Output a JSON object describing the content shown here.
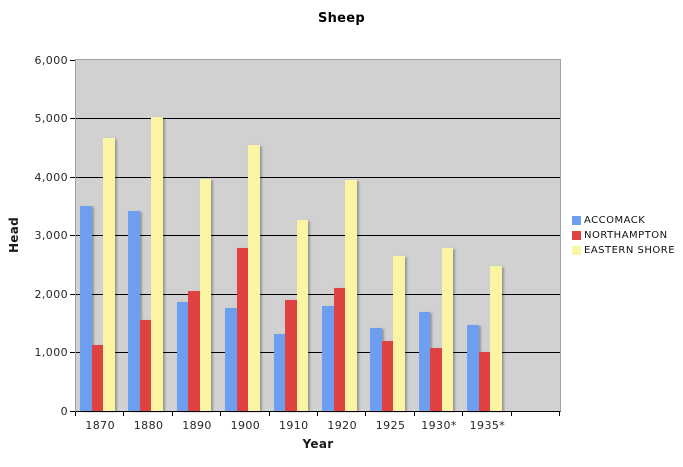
{
  "chart_data": {
    "type": "bar",
    "title": "Sheep",
    "xlabel": "Year",
    "ylabel": "Head",
    "ylim": [
      0,
      6000
    ],
    "ytick_step": 1000,
    "ytick_labels": [
      "0",
      "1,000",
      "2,000",
      "3,000",
      "4,000",
      "5,000",
      "6,000"
    ],
    "categories": [
      "1870",
      "1880",
      "1890",
      "1900",
      "1910",
      "1920",
      "1925",
      "1930*",
      "1935*"
    ],
    "series": [
      {
        "name": "ACCOMACK",
        "color": "#6d9ef0",
        "values": [
          3500,
          3420,
          1860,
          1760,
          1310,
          1800,
          1420,
          1690,
          1470
        ]
      },
      {
        "name": "NORTHAMPTON",
        "color": "#e04141",
        "values": [
          1120,
          1550,
          2050,
          2780,
          1900,
          2110,
          1190,
          1080,
          1000
        ]
      },
      {
        "name": "EASTERN SHORE",
        "color": "#fbf5a3",
        "values": [
          4670,
          5030,
          3960,
          4550,
          3270,
          3950,
          2650,
          2790,
          2480
        ]
      }
    ],
    "legend_position": "right",
    "grid": true,
    "plot_bg": "#d1d1d1"
  }
}
